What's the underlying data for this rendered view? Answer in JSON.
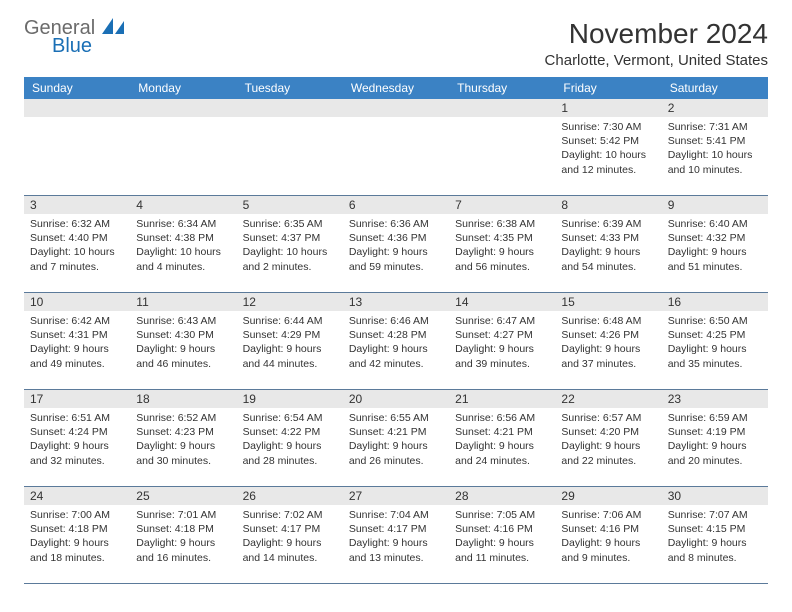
{
  "logo": {
    "text1": "General",
    "text2": "Blue",
    "color_general": "#6b6b6b",
    "color_blue": "#1a6fb5",
    "icon_color": "#1a6fb5"
  },
  "header": {
    "month_title": "November 2024",
    "location": "Charlotte, Vermont, United States"
  },
  "colors": {
    "header_bg": "#3b82c4",
    "header_text": "#ffffff",
    "daynum_bg": "#e8e8e8",
    "border": "#5b7a9a",
    "text": "#333333",
    "background": "#ffffff"
  },
  "fonts": {
    "title_size": 28,
    "location_size": 15,
    "dayhead_size": 12,
    "daynum_size": 12,
    "cell_size": 10.5
  },
  "day_headers": [
    "Sunday",
    "Monday",
    "Tuesday",
    "Wednesday",
    "Thursday",
    "Friday",
    "Saturday"
  ],
  "weeks": [
    [
      {
        "num": "",
        "sunrise": "",
        "sunset": "",
        "daylight": ""
      },
      {
        "num": "",
        "sunrise": "",
        "sunset": "",
        "daylight": ""
      },
      {
        "num": "",
        "sunrise": "",
        "sunset": "",
        "daylight": ""
      },
      {
        "num": "",
        "sunrise": "",
        "sunset": "",
        "daylight": ""
      },
      {
        "num": "",
        "sunrise": "",
        "sunset": "",
        "daylight": ""
      },
      {
        "num": "1",
        "sunrise": "Sunrise: 7:30 AM",
        "sunset": "Sunset: 5:42 PM",
        "daylight": "Daylight: 10 hours and 12 minutes."
      },
      {
        "num": "2",
        "sunrise": "Sunrise: 7:31 AM",
        "sunset": "Sunset: 5:41 PM",
        "daylight": "Daylight: 10 hours and 10 minutes."
      }
    ],
    [
      {
        "num": "3",
        "sunrise": "Sunrise: 6:32 AM",
        "sunset": "Sunset: 4:40 PM",
        "daylight": "Daylight: 10 hours and 7 minutes."
      },
      {
        "num": "4",
        "sunrise": "Sunrise: 6:34 AM",
        "sunset": "Sunset: 4:38 PM",
        "daylight": "Daylight: 10 hours and 4 minutes."
      },
      {
        "num": "5",
        "sunrise": "Sunrise: 6:35 AM",
        "sunset": "Sunset: 4:37 PM",
        "daylight": "Daylight: 10 hours and 2 minutes."
      },
      {
        "num": "6",
        "sunrise": "Sunrise: 6:36 AM",
        "sunset": "Sunset: 4:36 PM",
        "daylight": "Daylight: 9 hours and 59 minutes."
      },
      {
        "num": "7",
        "sunrise": "Sunrise: 6:38 AM",
        "sunset": "Sunset: 4:35 PM",
        "daylight": "Daylight: 9 hours and 56 minutes."
      },
      {
        "num": "8",
        "sunrise": "Sunrise: 6:39 AM",
        "sunset": "Sunset: 4:33 PM",
        "daylight": "Daylight: 9 hours and 54 minutes."
      },
      {
        "num": "9",
        "sunrise": "Sunrise: 6:40 AM",
        "sunset": "Sunset: 4:32 PM",
        "daylight": "Daylight: 9 hours and 51 minutes."
      }
    ],
    [
      {
        "num": "10",
        "sunrise": "Sunrise: 6:42 AM",
        "sunset": "Sunset: 4:31 PM",
        "daylight": "Daylight: 9 hours and 49 minutes."
      },
      {
        "num": "11",
        "sunrise": "Sunrise: 6:43 AM",
        "sunset": "Sunset: 4:30 PM",
        "daylight": "Daylight: 9 hours and 46 minutes."
      },
      {
        "num": "12",
        "sunrise": "Sunrise: 6:44 AM",
        "sunset": "Sunset: 4:29 PM",
        "daylight": "Daylight: 9 hours and 44 minutes."
      },
      {
        "num": "13",
        "sunrise": "Sunrise: 6:46 AM",
        "sunset": "Sunset: 4:28 PM",
        "daylight": "Daylight: 9 hours and 42 minutes."
      },
      {
        "num": "14",
        "sunrise": "Sunrise: 6:47 AM",
        "sunset": "Sunset: 4:27 PM",
        "daylight": "Daylight: 9 hours and 39 minutes."
      },
      {
        "num": "15",
        "sunrise": "Sunrise: 6:48 AM",
        "sunset": "Sunset: 4:26 PM",
        "daylight": "Daylight: 9 hours and 37 minutes."
      },
      {
        "num": "16",
        "sunrise": "Sunrise: 6:50 AM",
        "sunset": "Sunset: 4:25 PM",
        "daylight": "Daylight: 9 hours and 35 minutes."
      }
    ],
    [
      {
        "num": "17",
        "sunrise": "Sunrise: 6:51 AM",
        "sunset": "Sunset: 4:24 PM",
        "daylight": "Daylight: 9 hours and 32 minutes."
      },
      {
        "num": "18",
        "sunrise": "Sunrise: 6:52 AM",
        "sunset": "Sunset: 4:23 PM",
        "daylight": "Daylight: 9 hours and 30 minutes."
      },
      {
        "num": "19",
        "sunrise": "Sunrise: 6:54 AM",
        "sunset": "Sunset: 4:22 PM",
        "daylight": "Daylight: 9 hours and 28 minutes."
      },
      {
        "num": "20",
        "sunrise": "Sunrise: 6:55 AM",
        "sunset": "Sunset: 4:21 PM",
        "daylight": "Daylight: 9 hours and 26 minutes."
      },
      {
        "num": "21",
        "sunrise": "Sunrise: 6:56 AM",
        "sunset": "Sunset: 4:21 PM",
        "daylight": "Daylight: 9 hours and 24 minutes."
      },
      {
        "num": "22",
        "sunrise": "Sunrise: 6:57 AM",
        "sunset": "Sunset: 4:20 PM",
        "daylight": "Daylight: 9 hours and 22 minutes."
      },
      {
        "num": "23",
        "sunrise": "Sunrise: 6:59 AM",
        "sunset": "Sunset: 4:19 PM",
        "daylight": "Daylight: 9 hours and 20 minutes."
      }
    ],
    [
      {
        "num": "24",
        "sunrise": "Sunrise: 7:00 AM",
        "sunset": "Sunset: 4:18 PM",
        "daylight": "Daylight: 9 hours and 18 minutes."
      },
      {
        "num": "25",
        "sunrise": "Sunrise: 7:01 AM",
        "sunset": "Sunset: 4:18 PM",
        "daylight": "Daylight: 9 hours and 16 minutes."
      },
      {
        "num": "26",
        "sunrise": "Sunrise: 7:02 AM",
        "sunset": "Sunset: 4:17 PM",
        "daylight": "Daylight: 9 hours and 14 minutes."
      },
      {
        "num": "27",
        "sunrise": "Sunrise: 7:04 AM",
        "sunset": "Sunset: 4:17 PM",
        "daylight": "Daylight: 9 hours and 13 minutes."
      },
      {
        "num": "28",
        "sunrise": "Sunrise: 7:05 AM",
        "sunset": "Sunset: 4:16 PM",
        "daylight": "Daylight: 9 hours and 11 minutes."
      },
      {
        "num": "29",
        "sunrise": "Sunrise: 7:06 AM",
        "sunset": "Sunset: 4:16 PM",
        "daylight": "Daylight: 9 hours and 9 minutes."
      },
      {
        "num": "30",
        "sunrise": "Sunrise: 7:07 AM",
        "sunset": "Sunset: 4:15 PM",
        "daylight": "Daylight: 9 hours and 8 minutes."
      }
    ]
  ]
}
